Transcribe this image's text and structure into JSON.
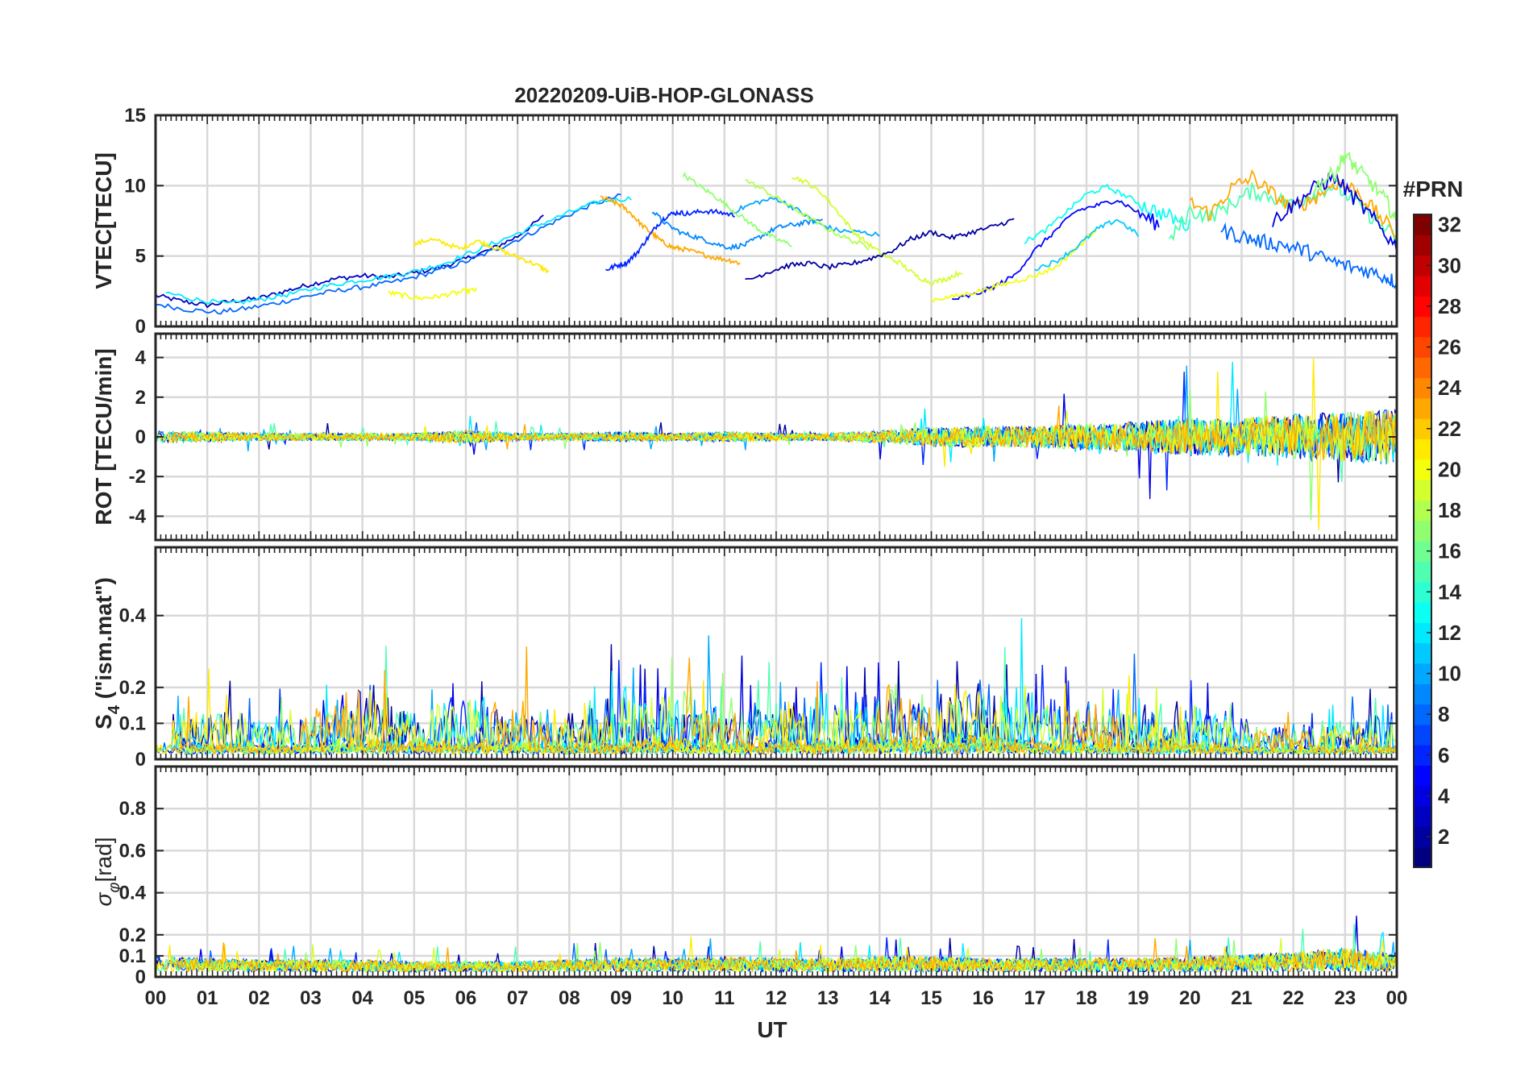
{
  "chart_data": {
    "type": "line",
    "title": "20220209-UiB-HOP-GLONASS",
    "xlabel": "UT",
    "x_range": [
      0,
      24
    ],
    "x_tick_labels": [
      "00",
      "01",
      "02",
      "03",
      "04",
      "05",
      "06",
      "07",
      "08",
      "09",
      "10",
      "11",
      "12",
      "13",
      "14",
      "15",
      "16",
      "17",
      "18",
      "19",
      "20",
      "21",
      "22",
      "23",
      "00"
    ],
    "grid": true,
    "colorbar": {
      "title": "#PRN",
      "range": [
        1,
        32
      ],
      "tick_labels": [
        "2",
        "4",
        "6",
        "8",
        "10",
        "12",
        "14",
        "16",
        "18",
        "20",
        "22",
        "24",
        "26",
        "28",
        "30",
        "32"
      ],
      "colormap": "jet",
      "position": "right"
    },
    "panels": [
      {
        "id": "vtec",
        "ylabel": "VTEC[TECU]",
        "ylim": [
          0,
          15
        ],
        "y_tick_labels": [
          "0",
          "5",
          "10",
          "15"
        ],
        "y_ticks": [
          0,
          5,
          10,
          15
        ],
        "series": [
          {
            "prn": 3,
            "x": [
              0.0,
              0.5,
              1.0,
              1.5,
              2.0,
              2.5,
              3.0,
              3.5,
              4.0,
              4.5,
              5.0,
              5.5,
              6.0,
              6.5,
              7.0,
              7.5
            ],
            "values": [
              2.2,
              1.8,
              1.5,
              1.8,
              2.0,
              2.5,
              3.0,
              3.4,
              3.6,
              3.5,
              3.8,
              4.2,
              4.8,
              5.5,
              6.4,
              7.8
            ]
          },
          {
            "prn": 8,
            "x": [
              0.0,
              0.6,
              1.2,
              1.8,
              2.4,
              3.0,
              3.6,
              4.2,
              4.8,
              5.4,
              6.0,
              6.6,
              7.2,
              7.8,
              8.4,
              9.0
            ],
            "values": [
              1.6,
              1.2,
              1.0,
              1.3,
              1.7,
              2.2,
              2.6,
              2.9,
              3.3,
              3.9,
              4.6,
              5.5,
              6.5,
              7.6,
              8.6,
              9.3
            ]
          },
          {
            "prn": 12,
            "x": [
              0.2,
              0.8,
              1.4,
              2.0,
              2.6,
              3.2,
              3.8,
              4.4,
              5.0,
              5.6,
              6.2,
              6.8,
              7.4,
              8.0,
              8.6,
              9.2
            ],
            "values": [
              2.4,
              1.9,
              1.6,
              1.9,
              2.3,
              2.8,
              3.2,
              3.5,
              3.9,
              4.5,
              5.4,
              6.3,
              7.2,
              8.1,
              8.9,
              9.1
            ]
          },
          {
            "prn": 21,
            "x": [
              5.0,
              5.3,
              5.6,
              5.9,
              6.2,
              6.5,
              6.8,
              7.1,
              7.4,
              7.6
            ],
            "values": [
              5.8,
              6.2,
              5.9,
              5.5,
              6.1,
              5.7,
              5.2,
              4.8,
              4.3,
              3.9
            ]
          },
          {
            "prn": 20,
            "x": [
              4.5,
              4.8,
              5.1,
              5.4,
              5.7,
              6.0,
              6.2
            ],
            "values": [
              2.4,
              2.2,
              2.0,
              2.1,
              2.3,
              2.5,
              2.6
            ]
          },
          {
            "prn": 23,
            "x": [
              8.6,
              8.8,
              9.0,
              9.2,
              9.4,
              9.6,
              9.8,
              10.0,
              10.2,
              10.5,
              10.8,
              11.1,
              11.3
            ],
            "values": [
              9.2,
              8.9,
              8.6,
              8.0,
              7.2,
              6.6,
              6.0,
              5.6,
              5.5,
              5.2,
              4.9,
              4.7,
              4.5
            ]
          },
          {
            "prn": 6,
            "x": [
              8.7,
              8.9,
              9.1,
              9.3,
              9.5,
              9.7,
              9.9,
              10.1,
              10.3,
              10.6,
              10.9,
              11.2
            ],
            "values": [
              4.0,
              4.3,
              4.5,
              5.2,
              6.2,
              7.2,
              7.9,
              8.1,
              8.0,
              8.2,
              8.1,
              7.9
            ]
          },
          {
            "prn": 9,
            "x": [
              9.6,
              9.9,
              10.2,
              10.5,
              10.8,
              11.1,
              11.4,
              11.7,
              12.0,
              12.3,
              12.6,
              12.9
            ],
            "values": [
              8.2,
              7.2,
              6.6,
              6.3,
              5.9,
              5.6,
              5.8,
              6.4,
              7.0,
              7.2,
              7.4,
              7.6
            ]
          },
          {
            "prn": 10,
            "x": [
              11.2,
              11.6,
              12.0,
              12.4,
              12.8,
              13.2,
              13.6,
              14.0
            ],
            "values": [
              8.2,
              8.8,
              9.1,
              8.3,
              7.3,
              6.8,
              6.7,
              6.5
            ]
          },
          {
            "prn": 17,
            "x": [
              10.2,
              10.5,
              10.8,
              11.1,
              11.4,
              11.7,
              12.0,
              12.3
            ],
            "values": [
              10.8,
              10.0,
              9.3,
              8.4,
              7.6,
              6.8,
              6.2,
              5.8
            ]
          },
          {
            "prn": 18,
            "x": [
              11.4,
              11.8,
              12.2,
              12.6,
              13.0,
              13.4,
              13.8
            ],
            "values": [
              10.4,
              9.6,
              8.7,
              7.8,
              6.9,
              6.2,
              5.6
            ]
          },
          {
            "prn": 19,
            "x": [
              12.3,
              12.6,
              12.9,
              13.2,
              13.5,
              13.8,
              14.1,
              14.4,
              14.7,
              15.0,
              15.3,
              15.6
            ],
            "values": [
              10.7,
              10.2,
              9.4,
              8.1,
              6.7,
              5.8,
              5.0,
              4.5,
              3.6,
              3.1,
              3.4,
              3.9
            ]
          },
          {
            "prn": 2,
            "x": [
              11.4,
              11.8,
              12.2,
              12.6,
              13.0,
              13.4,
              13.8,
              14.2,
              14.6,
              15.0,
              15.4,
              15.8,
              16.2,
              16.6
            ],
            "values": [
              3.2,
              3.8,
              4.3,
              4.5,
              4.2,
              4.4,
              4.8,
              5.3,
              6.2,
              6.7,
              6.3,
              6.7,
              7.1,
              7.6
            ]
          },
          {
            "prn": 5,
            "x": [
              15.4,
              15.8,
              16.2,
              16.6,
              17.0,
              17.4,
              17.8,
              18.2,
              18.6,
              19.0,
              19.4
            ],
            "values": [
              1.9,
              2.2,
              2.8,
              3.6,
              5.4,
              6.8,
              8.2,
              8.6,
              9.0,
              8.1,
              7.2
            ]
          },
          {
            "prn": 20,
            "x": [
              15.0,
              15.4,
              15.8,
              16.2,
              16.6,
              17.0,
              17.4,
              17.8,
              18.2
            ],
            "values": [
              1.9,
              2.1,
              2.4,
              2.8,
              3.2,
              3.6,
              4.2,
              5.5,
              7.0
            ]
          },
          {
            "prn": 13,
            "x": [
              16.8,
              17.2,
              17.6,
              18.0,
              18.4,
              18.8,
              19.2,
              19.6,
              20.0
            ],
            "values": [
              6.0,
              6.8,
              8.1,
              9.4,
              9.9,
              9.2,
              8.4,
              7.8,
              7.1
            ]
          },
          {
            "prn": 11,
            "x": [
              17.0,
              17.4,
              17.8,
              18.2,
              18.6,
              19.0
            ],
            "values": [
              4.1,
              4.6,
              5.6,
              6.9,
              7.6,
              6.5
            ]
          },
          {
            "prn": 15,
            "x": [
              19.6,
              20.0,
              20.4,
              20.8,
              21.2,
              21.6,
              22.0,
              22.4,
              22.8,
              23.2,
              23.6,
              24.0
            ],
            "values": [
              6.0,
              8.2,
              7.8,
              8.7,
              9.6,
              9.2,
              8.6,
              9.5,
              10.0,
              8.8,
              7.5,
              6.2
            ]
          },
          {
            "prn": 23,
            "x": [
              20.0,
              20.4,
              20.8,
              21.2,
              21.6,
              22.0,
              22.4,
              22.8,
              23.2,
              23.6,
              24.0
            ],
            "values": [
              8.8,
              8.0,
              9.8,
              10.6,
              9.4,
              8.4,
              9.1,
              10.2,
              9.7,
              8.1,
              6.5
            ]
          },
          {
            "prn": 8,
            "x": [
              20.6,
              21.0,
              21.4,
              21.8,
              22.2,
              22.6,
              23.0,
              23.4,
              23.8,
              24.0
            ],
            "values": [
              6.8,
              6.4,
              6.0,
              5.8,
              5.4,
              4.8,
              4.3,
              4.0,
              3.5,
              3.1
            ]
          },
          {
            "prn": 4,
            "x": [
              21.6,
              22.0,
              22.4,
              22.8,
              23.2,
              23.6,
              24.0
            ],
            "values": [
              7.5,
              8.6,
              9.8,
              10.6,
              9.0,
              7.4,
              5.6
            ]
          },
          {
            "prn": 17,
            "x": [
              22.4,
              22.8,
              23.0,
              23.2,
              23.5,
              23.8,
              24.0
            ],
            "values": [
              9.9,
              10.9,
              12.2,
              11.3,
              10.2,
              8.9,
              7.3
            ]
          }
        ]
      },
      {
        "id": "rot",
        "ylabel": "ROT [TECU/min]",
        "ylim": [
          -5.2,
          5.2
        ],
        "y_tick_labels": [
          "-4",
          "-2",
          "0",
          "2",
          "4"
        ],
        "y_ticks": [
          -4,
          -2,
          0,
          2,
          4
        ]
      },
      {
        "id": "s4",
        "ylabel": "S4 (\"ism.mat\")",
        "ylabel_main": "S",
        "ylabel_sub": "4",
        "ylabel_rest": " (\"ism.mat\")",
        "ylim": [
          0,
          0.59
        ],
        "y_tick_labels": [
          "0",
          "0.1",
          "0.2",
          "0.4"
        ],
        "y_ticks": [
          0,
          0.1,
          0.2,
          0.4
        ]
      },
      {
        "id": "sigma",
        "ylabel": "σφ[rad]",
        "ylabel_main": "σ",
        "ylabel_sub": "φ",
        "ylabel_rest": "[rad]",
        "ylim": [
          0,
          1.0
        ],
        "y_tick_labels": [
          "0",
          "0.1",
          "0.2",
          "0.4",
          "0.6",
          "0.8"
        ],
        "y_ticks": [
          0,
          0.1,
          0.2,
          0.4,
          0.6,
          0.8
        ]
      }
    ],
    "activity_profile": {
      "description_hours": [
        0,
        1,
        2,
        3,
        4,
        5,
        6,
        7,
        8,
        9,
        10,
        11,
        12,
        13,
        14,
        15,
        16,
        17,
        18,
        19,
        20,
        21,
        22,
        23,
        24
      ],
      "rot_amplitude": [
        0.5,
        0.4,
        0.3,
        0.3,
        0.3,
        0.3,
        0.5,
        0.3,
        0.3,
        0.4,
        0.3,
        0.4,
        0.3,
        0.3,
        0.5,
        0.8,
        0.9,
        0.9,
        1.1,
        1.3,
        1.6,
        1.6,
        1.9,
        2.1,
        2.4
      ],
      "s4_level": [
        0.1,
        0.11,
        0.09,
        0.1,
        0.16,
        0.11,
        0.13,
        0.12,
        0.1,
        0.15,
        0.16,
        0.12,
        0.12,
        0.13,
        0.17,
        0.15,
        0.18,
        0.14,
        0.12,
        0.1,
        0.13,
        0.08,
        0.07,
        0.08,
        0.09
      ],
      "sigma_level": [
        0.09,
        0.08,
        0.07,
        0.07,
        0.07,
        0.06,
        0.06,
        0.06,
        0.07,
        0.08,
        0.08,
        0.09,
        0.08,
        0.08,
        0.09,
        0.09,
        0.08,
        0.08,
        0.08,
        0.08,
        0.09,
        0.1,
        0.12,
        0.14,
        0.11
      ]
    }
  }
}
